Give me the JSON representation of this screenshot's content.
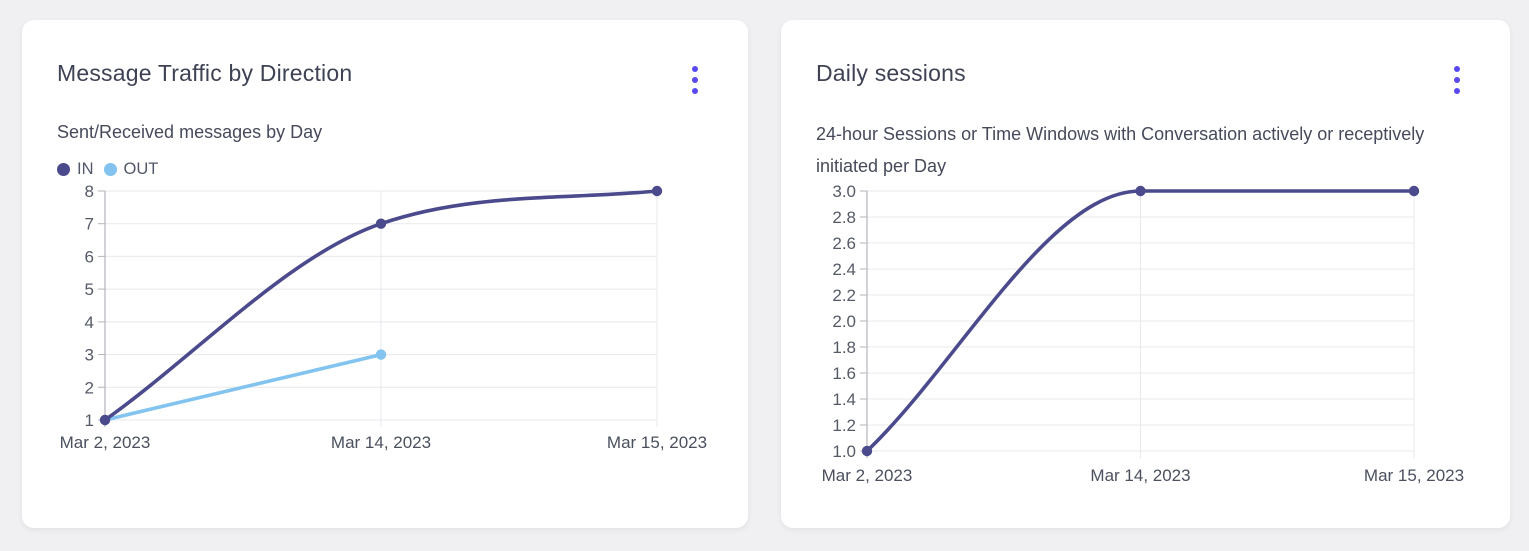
{
  "page": {
    "background": "#f0f0f2"
  },
  "colors": {
    "accent": "#5a49f0",
    "grid": "#e7e8ec",
    "axis": "#b4b5bc",
    "tick_text": "#555a67",
    "label_text": "#4b505f",
    "card_bg": "#ffffff",
    "title_text": "#3e4254",
    "subtitle_text": "#464a5b"
  },
  "cards": [
    {
      "title": "Message Traffic by Direction",
      "subtitle": "Sent/Received messages by Day",
      "menu_icon": "kebab-menu"
    },
    {
      "title": "Daily sessions",
      "subtitle": "24-hour Sessions or Time Windows with Conversation actively or receptively initiated per Day",
      "menu_icon": "kebab-menu"
    }
  ],
  "chart_data": [
    {
      "type": "line",
      "title": "Message Traffic by Direction",
      "subtitle": "Sent/Received messages by Day",
      "categories": [
        "Mar 2, 2023",
        "Mar 14, 2023",
        "Mar 15, 2023"
      ],
      "series": [
        {
          "name": "IN",
          "color": "#4b4a8d",
          "values": [
            1,
            7,
            8
          ]
        },
        {
          "name": "OUT",
          "color": "#82c3f0",
          "values": [
            1,
            3,
            null
          ]
        }
      ],
      "ylim": [
        1,
        8
      ],
      "ytick_step": 1,
      "ytick_decimals": 0,
      "legend_position": "top-left",
      "grid": true,
      "curve": "monotone"
    },
    {
      "type": "line",
      "title": "Daily sessions",
      "subtitle": "24-hour Sessions or Time Windows with Conversation actively or receptively initiated per Day",
      "categories": [
        "Mar 2, 2023",
        "Mar 14, 2023",
        "Mar 15, 2023"
      ],
      "series": [
        {
          "name": "Daily sessions",
          "color": "#4b4a8d",
          "values": [
            1.0,
            3.0,
            3.0
          ]
        }
      ],
      "ylim": [
        1.0,
        3.0
      ],
      "ytick_step": 0.2,
      "ytick_decimals": 1,
      "legend_position": "none",
      "grid": true,
      "curve": "monotone"
    }
  ]
}
